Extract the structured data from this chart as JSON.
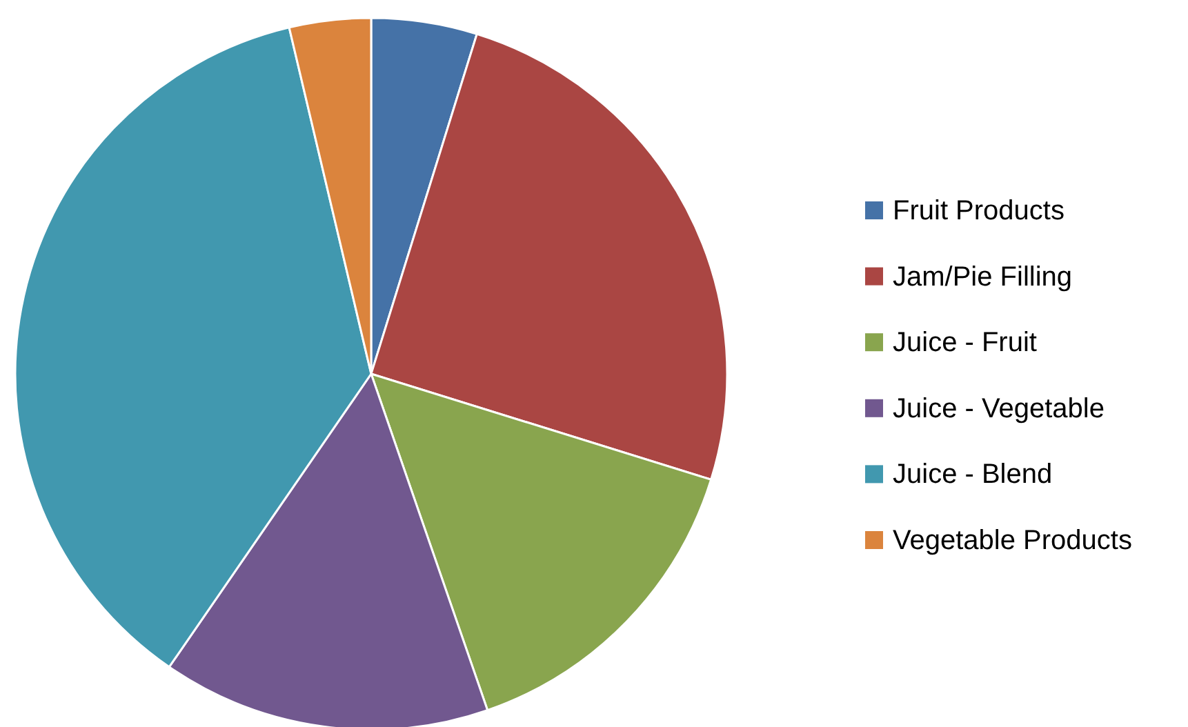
{
  "chart_data": {
    "type": "pie",
    "categories": [
      "Fruit Products",
      "Jam/Pie Filling",
      "Juice - Fruit",
      "Juice - Vegetable",
      "Juice - Blend",
      "Vegetable Products"
    ],
    "values": [
      4.8,
      25,
      14.9,
      14.9,
      36.7,
      3.7
    ],
    "colors": [
      "#4572a7",
      "#aa4643",
      "#89a54e",
      "#71588f",
      "#4198af",
      "#db843d"
    ],
    "legend": "right"
  }
}
